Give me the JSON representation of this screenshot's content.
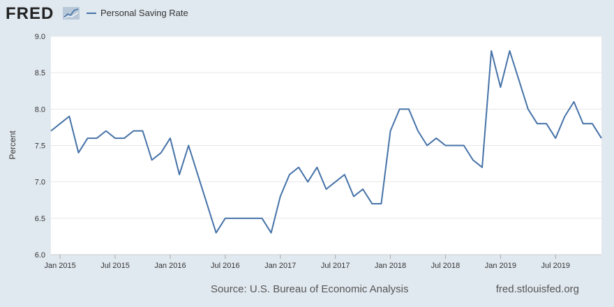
{
  "header": {
    "logo_text": "FRED",
    "logo_icon": "fred-trend-graph-icon"
  },
  "legend": {
    "label": "Personal Saving Rate"
  },
  "colors": {
    "series": "#4572a7",
    "background": "#e1e9f0",
    "plot_bg": "#ffffff",
    "grid": "#e6e6e6"
  },
  "footer": {
    "source": "Source: U.S. Bureau of Economic Analysis",
    "site": "fred.stlouisfed.org"
  },
  "chart_data": {
    "type": "line",
    "ylabel": "Percent",
    "ylim": [
      6.0,
      9.0
    ],
    "yticks": [
      "6.0",
      "6.5",
      "7.0",
      "7.5",
      "8.0",
      "8.5",
      "9.0"
    ],
    "xticks": [
      {
        "label": "Jan 2015",
        "date": "2015-01"
      },
      {
        "label": "Jul 2015",
        "date": "2015-07"
      },
      {
        "label": "Jan 2016",
        "date": "2016-01"
      },
      {
        "label": "Jul 2016",
        "date": "2016-07"
      },
      {
        "label": "Jan 2017",
        "date": "2017-01"
      },
      {
        "label": "Jul 2017",
        "date": "2017-07"
      },
      {
        "label": "Jan 2018",
        "date": "2018-01"
      },
      {
        "label": "Jul 2018",
        "date": "2018-07"
      },
      {
        "label": "Jan 2019",
        "date": "2019-01"
      },
      {
        "label": "Jul 2019",
        "date": "2019-07"
      }
    ],
    "grid": true,
    "series": [
      {
        "name": "Personal Saving Rate",
        "x": [
          "2014-12",
          "2015-01",
          "2015-02",
          "2015-03",
          "2015-04",
          "2015-05",
          "2015-06",
          "2015-07",
          "2015-08",
          "2015-09",
          "2015-10",
          "2015-11",
          "2015-12",
          "2016-01",
          "2016-02",
          "2016-03",
          "2016-04",
          "2016-05",
          "2016-06",
          "2016-07",
          "2016-08",
          "2016-09",
          "2016-10",
          "2016-11",
          "2016-12",
          "2017-01",
          "2017-02",
          "2017-03",
          "2017-04",
          "2017-05",
          "2017-06",
          "2017-07",
          "2017-08",
          "2017-09",
          "2017-10",
          "2017-11",
          "2017-12",
          "2018-01",
          "2018-02",
          "2018-03",
          "2018-04",
          "2018-05",
          "2018-06",
          "2018-07",
          "2018-08",
          "2018-09",
          "2018-10",
          "2018-11",
          "2018-12",
          "2019-01",
          "2019-02",
          "2019-03",
          "2019-04",
          "2019-05",
          "2019-06",
          "2019-07",
          "2019-08",
          "2019-09",
          "2019-10",
          "2019-11",
          "2019-12"
        ],
        "values": [
          7.7,
          7.8,
          7.9,
          7.4,
          7.6,
          7.6,
          7.7,
          7.6,
          7.6,
          7.7,
          7.7,
          7.3,
          7.4,
          7.6,
          7.1,
          7.5,
          7.1,
          6.7,
          6.3,
          6.5,
          6.5,
          6.5,
          6.5,
          6.5,
          6.3,
          6.8,
          7.1,
          7.2,
          7.0,
          7.2,
          6.9,
          7.0,
          7.1,
          6.8,
          6.9,
          6.7,
          6.7,
          7.7,
          8.0,
          8.0,
          7.7,
          7.5,
          7.6,
          7.5,
          7.5,
          7.5,
          7.3,
          7.2,
          8.8,
          8.3,
          8.8,
          8.4,
          8.0,
          7.8,
          7.8,
          7.6,
          7.9,
          8.1,
          7.8,
          7.8,
          7.6
        ]
      }
    ]
  }
}
